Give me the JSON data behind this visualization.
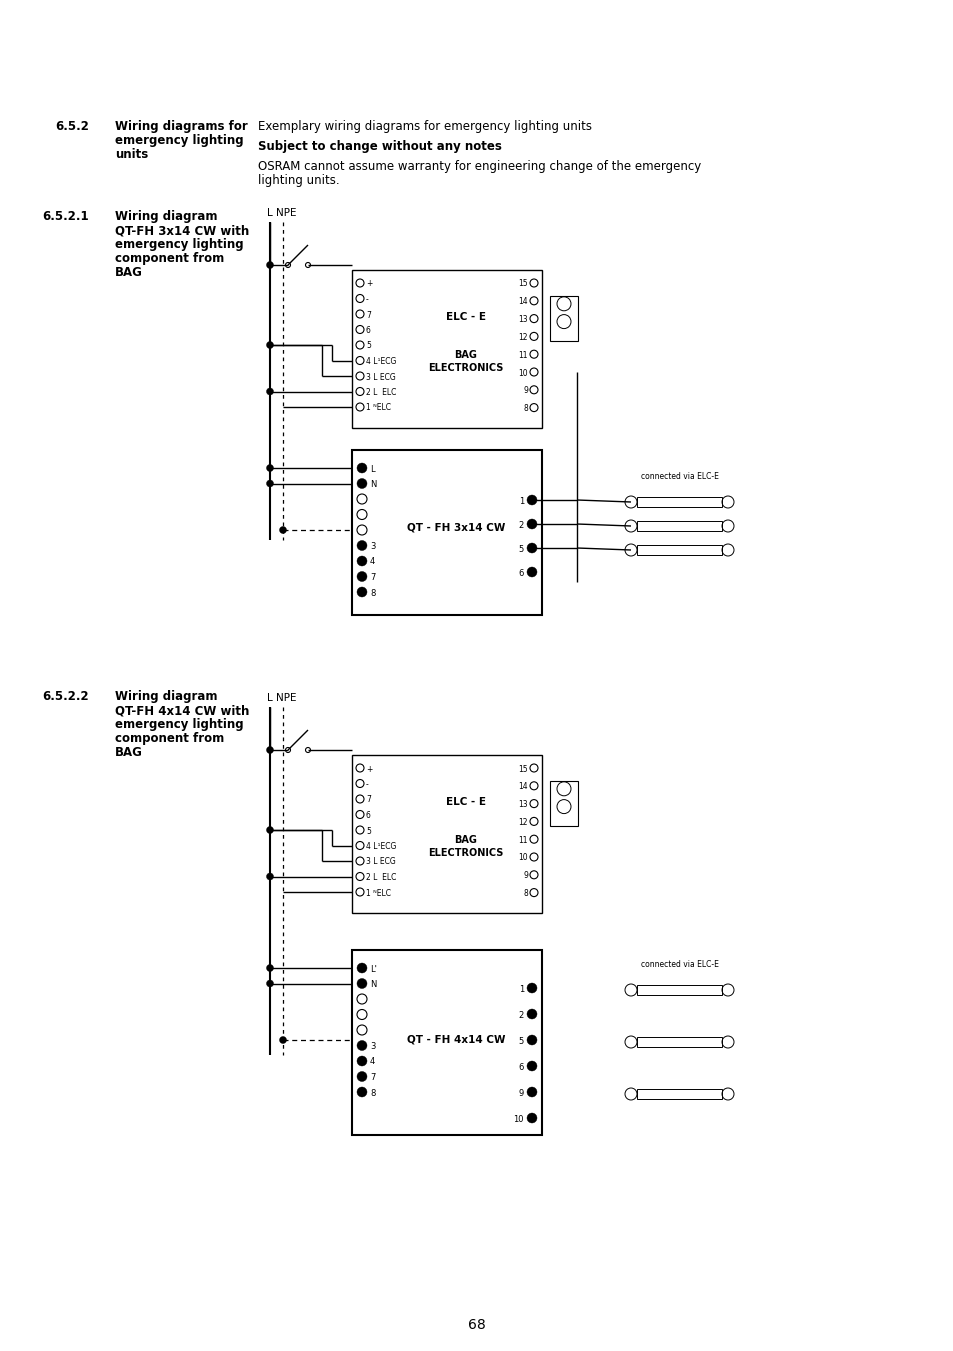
{
  "bg_color": "#ffffff",
  "section_652_num": "6.5.2",
  "section_652_t1": "Wiring diagrams for",
  "section_652_t2": "emergency lighting",
  "section_652_t3": "units",
  "desc1": "Exemplary wiring diagrams for emergency lighting units",
  "desc2": "Subject to change without any notes",
  "desc3a": "OSRAM cannot assume warranty for engineering change of the emergency",
  "desc3b": "lighting units.",
  "section_6521_num": "6.5.2.1",
  "section_6521_t1": "Wiring diagram",
  "section_6521_t2": "QT-FH 3x14 CW with",
  "section_6521_t3": "emergency lighting",
  "section_6521_t4": "component from",
  "section_6521_t5": "BAG",
  "section_6522_num": "6.5.2.2",
  "section_6522_t1": "Wiring diagram",
  "section_6522_t2": "QT-FH 4x14 CW with",
  "section_6522_t3": "emergency lighting",
  "section_6522_t4": "component from",
  "section_6522_t5": "BAG",
  "elc_title": "ELC - E",
  "bag_t1": "BAG",
  "bag_t2": "ELECTRONICS",
  "qt3_title": "QT - FH 3x14 CW",
  "qt4_title": "QT - FH 4x14 CW",
  "connected": "connected via ELC-E",
  "lnpe": "L NPE",
  "page": "68",
  "elc_left_pins": [
    "+",
    "-",
    "7",
    "6",
    "5",
    "4 L¹ECG",
    "3 L ECG",
    "2 L  ELC",
    "1 ᴺELC"
  ],
  "elc_right_pins": [
    "15",
    "14",
    "13",
    "12",
    "11",
    "10",
    "9",
    "8"
  ],
  "qt3_left_pins": [
    "L",
    "N",
    "",
    "",
    "",
    "3",
    "4",
    "7",
    "8"
  ],
  "qt3_right_pins": [
    "1",
    "2",
    "5",
    "6"
  ],
  "qt4_left_pins": [
    "L'",
    "N",
    "",
    "",
    "",
    "3",
    "4",
    "7",
    "8"
  ],
  "qt4_right_pins": [
    "1",
    "2",
    "5",
    "6",
    "9",
    "10"
  ]
}
